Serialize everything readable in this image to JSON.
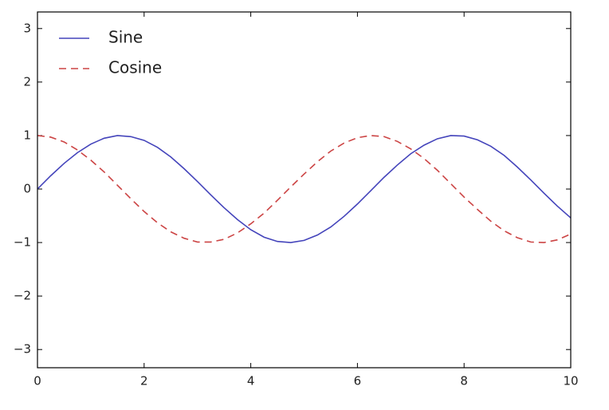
{
  "chart_data": {
    "type": "line",
    "x": [
      0,
      0.25,
      0.5,
      0.75,
      1,
      1.25,
      1.5,
      1.75,
      2,
      2.25,
      2.5,
      2.75,
      3,
      3.25,
      3.5,
      3.75,
      4,
      4.25,
      4.5,
      4.75,
      5,
      5.25,
      5.5,
      5.75,
      6,
      6.25,
      6.5,
      6.75,
      7,
      7.25,
      7.5,
      7.75,
      8,
      8.25,
      8.5,
      8.75,
      9,
      9.25,
      9.5,
      9.75,
      10
    ],
    "series": [
      {
        "name": "Sine",
        "color": "#4444bb",
        "linestyle": "solid",
        "values": [
          0,
          0.25,
          0.48,
          0.68,
          0.84,
          0.95,
          1.0,
          0.98,
          0.91,
          0.78,
          0.6,
          0.38,
          0.14,
          -0.11,
          -0.35,
          -0.57,
          -0.76,
          -0.9,
          -0.98,
          -1.0,
          -0.96,
          -0.86,
          -0.71,
          -0.51,
          -0.28,
          -0.03,
          0.22,
          0.45,
          0.66,
          0.82,
          0.94,
          1.0,
          0.99,
          0.92,
          0.8,
          0.63,
          0.41,
          0.17,
          -0.08,
          -0.32,
          -0.54
        ]
      },
      {
        "name": "Cosine",
        "color": "#cc4444",
        "linestyle": "dashed",
        "values": [
          1,
          0.97,
          0.88,
          0.73,
          0.54,
          0.32,
          0.07,
          -0.18,
          -0.42,
          -0.63,
          -0.8,
          -0.92,
          -0.99,
          -0.99,
          -0.94,
          -0.82,
          -0.65,
          -0.45,
          -0.21,
          0.04,
          0.28,
          0.51,
          0.71,
          0.86,
          0.96,
          1.0,
          0.98,
          0.89,
          0.75,
          0.57,
          0.35,
          0.1,
          -0.15,
          -0.38,
          -0.6,
          -0.78,
          -0.91,
          -0.99,
          -1.0,
          -0.95,
          -0.84
        ]
      }
    ],
    "xlim": [
      0,
      10
    ],
    "xticks": [
      0,
      2,
      4,
      6,
      8,
      10
    ],
    "ylim": [
      -3.34,
      3.31
    ],
    "yticks": [
      {
        "value": -3,
        "label": "−3"
      },
      {
        "value": -2,
        "label": "−2"
      },
      {
        "value": -1,
        "label": "−1"
      },
      0,
      1,
      2,
      3
    ],
    "legend": "upper left",
    "grid": false
  }
}
